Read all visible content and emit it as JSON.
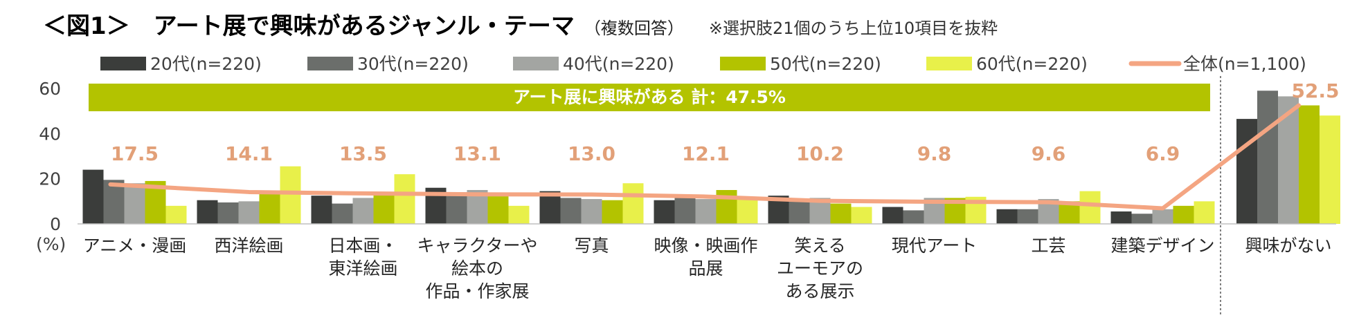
{
  "header": {
    "title": "＜図1＞　アート展で興味があるジャンル・テーマ",
    "subtitle": "（複数回答）",
    "note": "※選択肢21個のうち上位10項目を抜粋"
  },
  "colors": {
    "20s": "#3b3d3b",
    "30s": "#6b6e6b",
    "40s": "#a3a5a2",
    "50s": "#b3c300",
    "60s": "#e8f04a",
    "total": "#f4a582",
    "banner": "#b3c300",
    "total_label": "#e2a078"
  },
  "chart_data": {
    "type": "bar",
    "categories": [
      [
        "アニメ・漫画"
      ],
      [
        "西洋絵画"
      ],
      [
        "日本画・",
        "東洋絵画"
      ],
      [
        "キャラクターや",
        "絵本の",
        "作品・作家展"
      ],
      [
        "写真"
      ],
      [
        "映像・映画作",
        "品展"
      ],
      [
        "笑える",
        "ユーモアの",
        "ある展示"
      ],
      [
        "現代アート"
      ],
      [
        "工芸"
      ],
      [
        "建築デザイン"
      ],
      [
        "興味がない"
      ]
    ],
    "series": [
      {
        "name": "20代(n=220)",
        "values": [
          24.0,
          10.5,
          12.5,
          16.0,
          14.5,
          10.5,
          12.5,
          7.5,
          6.5,
          5.5,
          46.5
        ]
      },
      {
        "name": "30代(n=220)",
        "values": [
          19.5,
          9.5,
          9.0,
          14.0,
          11.5,
          12.0,
          10.5,
          6.0,
          6.5,
          4.5,
          59.0
        ]
      },
      {
        "name": "40代(n=220)",
        "values": [
          18.0,
          10.0,
          11.5,
          15.0,
          11.0,
          11.0,
          11.5,
          11.5,
          11.0,
          6.5,
          56.5
        ]
      },
      {
        "name": "50代(n=220)",
        "values": [
          19.0,
          14.0,
          13.5,
          12.5,
          10.5,
          15.0,
          9.0,
          11.5,
          10.0,
          8.0,
          52.5
        ]
      },
      {
        "name": "60代(n=220)",
        "values": [
          8.0,
          25.5,
          22.0,
          8.0,
          18.0,
          11.0,
          7.5,
          12.0,
          14.5,
          10.0,
          48.0
        ]
      }
    ],
    "total_series": {
      "name": "全体(n=1,100)",
      "values": [
        17.5,
        14.1,
        13.5,
        13.1,
        13.0,
        12.1,
        10.2,
        9.8,
        9.6,
        6.9,
        52.5
      ],
      "labels": [
        "17.5",
        "14.1",
        "13.5",
        "13.1",
        "13.0",
        "12.1",
        "10.2",
        "9.8",
        "9.6",
        "6.9",
        "52.5"
      ]
    },
    "banner_text": "アート展に興味がある 計：47.5%",
    "y_unit": "(%)",
    "ylim": [
      0,
      60
    ],
    "y_ticks": [
      0,
      20,
      40,
      60
    ],
    "legend_position": "top"
  }
}
